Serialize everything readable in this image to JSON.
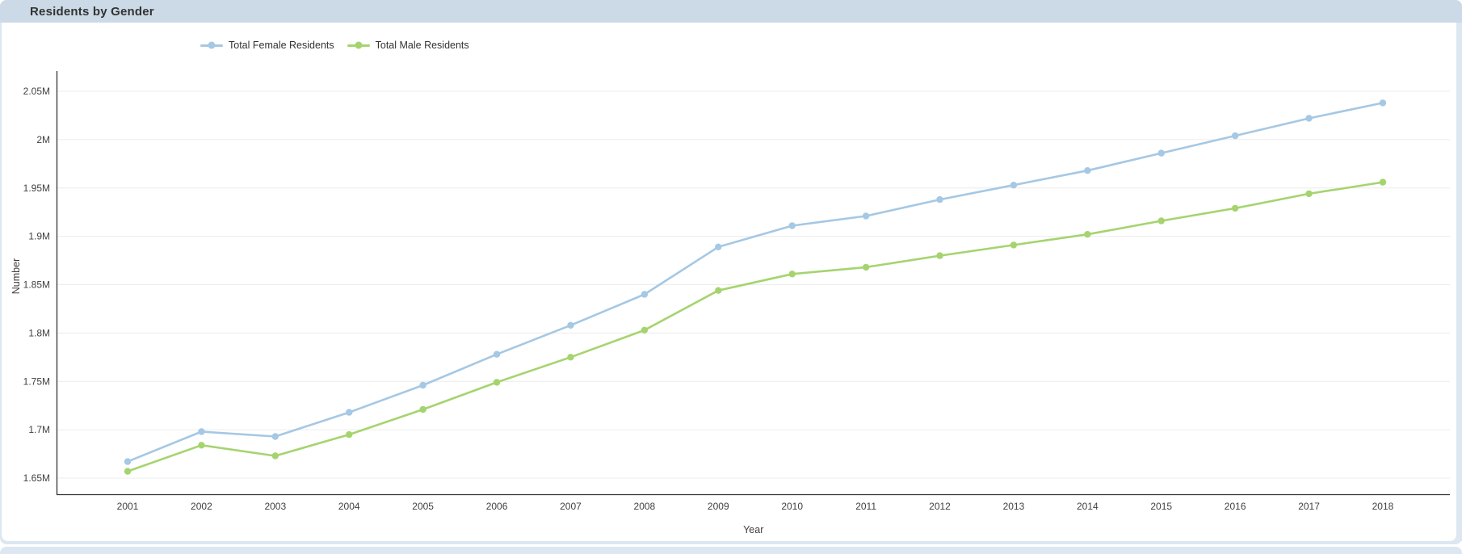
{
  "panel": {
    "title": "Residents by Gender"
  },
  "colors": {
    "header_bg": "#ccd9e6",
    "frame_bg": "#dce7f1",
    "grid": "#ececec",
    "axis_line": "#333333",
    "tick_text": "#404040",
    "female_series": "#a5c8e4",
    "male_series": "#a5d46f"
  },
  "chart_data": {
    "type": "line",
    "title": "Residents by Gender",
    "xlabel": "Year",
    "ylabel": "Number",
    "legend_position": "top",
    "grid": true,
    "x": [
      2001,
      2002,
      2003,
      2004,
      2005,
      2006,
      2007,
      2008,
      2009,
      2010,
      2011,
      2012,
      2013,
      2014,
      2015,
      2016,
      2017,
      2018
    ],
    "y_unit": "millions",
    "ylim": [
      1.633,
      2.091
    ],
    "yticks_values": [
      1.65,
      1.7,
      1.75,
      1.8,
      1.85,
      1.9,
      1.95,
      2.0,
      2.05
    ],
    "yticks_labels": [
      "1.65M",
      "1.7M",
      "1.75M",
      "1.8M",
      "1.85M",
      "1.9M",
      "1.95M",
      "2M",
      "2.05M"
    ],
    "series": [
      {
        "name": "Total Female Residents",
        "color": "#a5c8e4",
        "values": [
          1.667,
          1.698,
          1.693,
          1.718,
          1.746,
          1.778,
          1.808,
          1.84,
          1.889,
          1.911,
          1.921,
          1.938,
          1.953,
          1.968,
          1.986,
          2.004,
          2.022,
          2.038
        ]
      },
      {
        "name": "Total Male Residents",
        "color": "#a5d46f",
        "values": [
          1.657,
          1.684,
          1.673,
          1.695,
          1.721,
          1.749,
          1.775,
          1.803,
          1.844,
          1.861,
          1.868,
          1.88,
          1.891,
          1.902,
          1.916,
          1.929,
          1.944,
          1.956
        ]
      }
    ]
  }
}
